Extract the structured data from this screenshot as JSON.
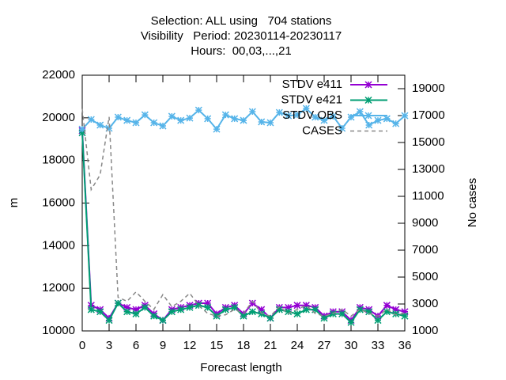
{
  "chart_data": {
    "type": "line",
    "title": [
      "Selection: ALL using   704 stations",
      "Visibility   Period: 20230114-20230117",
      "Hours:  00,03,...,21"
    ],
    "xlabel": "Forecast length",
    "ylabel": "m",
    "y2label": "No cases",
    "x": [
      0,
      1,
      2,
      3,
      4,
      5,
      6,
      7,
      8,
      9,
      10,
      11,
      12,
      13,
      14,
      15,
      16,
      17,
      18,
      19,
      20,
      21,
      22,
      23,
      24,
      25,
      26,
      27,
      28,
      29,
      30,
      31,
      32,
      33,
      34,
      35,
      36
    ],
    "xlim": [
      0,
      36
    ],
    "xticks": [
      0,
      3,
      6,
      9,
      12,
      15,
      18,
      21,
      24,
      27,
      30,
      33,
      36
    ],
    "ylim": [
      10000,
      22000
    ],
    "yticks": [
      10000,
      12000,
      14000,
      16000,
      18000,
      20000,
      22000
    ],
    "y2lim": [
      1000,
      20000
    ],
    "y2ticks": [
      1000,
      3000,
      5000,
      7000,
      9000,
      11000,
      13000,
      15000,
      17000,
      19000
    ],
    "grid": false,
    "legend": "top-right",
    "series": [
      {
        "name": "STDV e411",
        "color": "#9400d3",
        "marker": true,
        "values": [
          19400,
          11200,
          11000,
          10600,
          11300,
          11100,
          11000,
          11200,
          10800,
          10500,
          11000,
          11100,
          11200,
          11300,
          11300,
          10800,
          11100,
          11200,
          10800,
          11300,
          11000,
          10600,
          11100,
          11100,
          11200,
          11200,
          11100,
          10700,
          10900,
          10900,
          10500,
          11100,
          11000,
          10700,
          11200,
          11000,
          10900
        ]
      },
      {
        "name": "STDV e421",
        "color": "#009e73",
        "marker": true,
        "values": [
          19300,
          11000,
          10900,
          10500,
          11300,
          10900,
          10800,
          11100,
          10700,
          10500,
          10900,
          11000,
          11100,
          11200,
          11100,
          10700,
          11000,
          11100,
          10700,
          10900,
          10800,
          10600,
          11000,
          10900,
          10800,
          11000,
          11000,
          10600,
          10800,
          10800,
          10400,
          11000,
          10900,
          10500,
          10900,
          10800,
          10700
        ]
      },
      {
        "name": "STDV OBS",
        "color": "#56b4e9",
        "marker": true,
        "values": [
          19470,
          19920,
          19660,
          19510,
          20030,
          19880,
          19770,
          20140,
          19770,
          19620,
          20070,
          19880,
          19990,
          20360,
          19960,
          19470,
          20140,
          19960,
          19880,
          20290,
          19810,
          19770,
          20250,
          20100,
          20140,
          20440,
          20030,
          19880,
          20070,
          19510,
          20030,
          20290,
          19660,
          19880,
          19960,
          19730,
          20100
        ]
      },
      {
        "name": "CASES",
        "color": "#888888",
        "marker": false,
        "dashed": true,
        "axis": "y2",
        "values": [
          17500,
          11500,
          12600,
          16900,
          3500,
          3200,
          3900,
          3200,
          2600,
          3700,
          2800,
          3200,
          3800,
          2900,
          2300,
          2100,
          2200,
          2600,
          2300,
          3200,
          2300,
          2100,
          2800,
          2300,
          2600,
          2900,
          2300,
          2100,
          2300,
          2600,
          2100,
          2600,
          2300,
          2100,
          2600,
          2200,
          2300
        ]
      }
    ]
  }
}
